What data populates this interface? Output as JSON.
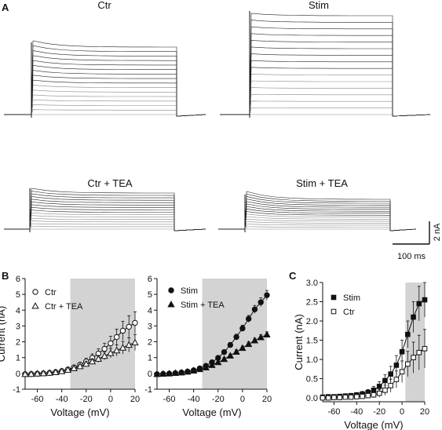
{
  "panel_labels": {
    "A": "A",
    "B": "B",
    "C": "C"
  },
  "trace_titles": {
    "ctr": "Ctr",
    "stim": "Stim",
    "ctr_tea": "Ctr + TEA",
    "stim_tea": "Stim + TEA"
  },
  "scalebar": {
    "current": "2 nA",
    "time": "100 ms"
  },
  "colors": {
    "shade": "#d3d3d3",
    "trace_dark": "#222222",
    "trace_light": "#888888"
  },
  "chart_data": [
    {
      "type": "line",
      "title": "",
      "xlabel": "Voltage (mV)",
      "ylabel": "Current (nA)",
      "xlim": [
        -70,
        20
      ],
      "ylim": [
        -1,
        6
      ],
      "xticks": [
        "-60",
        "-40",
        "-20",
        "0",
        "20"
      ],
      "yticks": [
        "-1",
        "0",
        "1",
        "2",
        "3",
        "4",
        "5",
        "6"
      ],
      "shaded_range": [
        -33,
        20
      ],
      "legend": "top-left",
      "x": [
        -70,
        -65,
        -60,
        -55,
        -50,
        -45,
        -40,
        -35,
        -30,
        -25,
        -20,
        -15,
        -10,
        -5,
        0,
        5,
        10,
        15,
        20
      ],
      "series": [
        {
          "name": "Ctr",
          "marker": "open-circle",
          "values": [
            -0.05,
            -0.04,
            -0.02,
            0.0,
            0.03,
            0.08,
            0.15,
            0.25,
            0.38,
            0.55,
            0.75,
            0.98,
            1.25,
            1.55,
            1.9,
            2.3,
            2.7,
            2.95,
            3.2
          ],
          "errors": [
            0.05,
            0.05,
            0.05,
            0.05,
            0.06,
            0.07,
            0.08,
            0.1,
            0.12,
            0.15,
            0.2,
            0.25,
            0.3,
            0.35,
            0.45,
            0.5,
            0.6,
            0.7,
            0.7
          ]
        },
        {
          "name": "Ctr + TEA",
          "marker": "open-triangle",
          "values": [
            -0.05,
            -0.04,
            -0.02,
            0.0,
            0.03,
            0.07,
            0.13,
            0.22,
            0.32,
            0.45,
            0.6,
            0.75,
            0.92,
            1.1,
            1.28,
            1.45,
            1.62,
            1.8,
            1.95
          ],
          "errors": [
            0.05,
            0.05,
            0.05,
            0.05,
            0.05,
            0.06,
            0.07,
            0.08,
            0.1,
            0.12,
            0.15,
            0.18,
            0.22,
            0.25,
            0.3,
            0.35,
            0.4,
            0.45,
            0.5
          ]
        }
      ]
    },
    {
      "type": "line",
      "title": "",
      "xlabel": "Voltage (mV)",
      "ylabel": "",
      "xlim": [
        -70,
        20
      ],
      "ylim": [
        -1,
        6
      ],
      "xticks": [
        "-60",
        "-40",
        "-20",
        "0",
        "20"
      ],
      "yticks": [
        "-1",
        "0",
        "1",
        "2",
        "3",
        "4",
        "5",
        "6"
      ],
      "shaded_range": [
        -33,
        20
      ],
      "legend": "top-left",
      "x": [
        -70,
        -65,
        -60,
        -55,
        -50,
        -45,
        -40,
        -35,
        -30,
        -25,
        -20,
        -15,
        -10,
        -5,
        0,
        5,
        10,
        15,
        20
      ],
      "series": [
        {
          "name": "Stim",
          "marker": "filled-circle",
          "values": [
            -0.05,
            -0.03,
            -0.01,
            0.02,
            0.06,
            0.12,
            0.2,
            0.32,
            0.48,
            0.7,
            0.98,
            1.35,
            1.8,
            2.3,
            2.85,
            3.45,
            4.05,
            4.5,
            4.95
          ],
          "errors": [
            0.03,
            0.03,
            0.03,
            0.03,
            0.04,
            0.05,
            0.06,
            0.07,
            0.08,
            0.1,
            0.12,
            0.14,
            0.16,
            0.18,
            0.2,
            0.22,
            0.25,
            0.28,
            0.3
          ]
        },
        {
          "name": "Stim + TEA",
          "marker": "filled-triangle",
          "values": [
            -0.05,
            -0.03,
            -0.01,
            0.02,
            0.05,
            0.1,
            0.17,
            0.26,
            0.37,
            0.52,
            0.7,
            0.9,
            1.12,
            1.36,
            1.6,
            1.85,
            2.08,
            2.28,
            2.45
          ],
          "errors": [
            0.03,
            0.03,
            0.03,
            0.03,
            0.04,
            0.04,
            0.05,
            0.06,
            0.07,
            0.08,
            0.09,
            0.1,
            0.11,
            0.12,
            0.13,
            0.14,
            0.15,
            0.17,
            0.18
          ]
        }
      ]
    },
    {
      "type": "line",
      "title": "",
      "xlabel": "Voltage (mV)",
      "ylabel": "Current (nA)",
      "xlim": [
        -70,
        20
      ],
      "ylim": [
        -0.1,
        3.0
      ],
      "xticks": [
        "-60",
        "-40",
        "-20",
        "0",
        "20"
      ],
      "yticks": [
        "0.0",
        "0.5",
        "1.0",
        "1.5",
        "2.0",
        "2.5",
        "3.0"
      ],
      "shaded_range": [
        3,
        20
      ],
      "legend": "top-left",
      "x": [
        -70,
        -65,
        -60,
        -55,
        -50,
        -45,
        -40,
        -35,
        -30,
        -25,
        -20,
        -15,
        -10,
        -5,
        0,
        5,
        10,
        15,
        20
      ],
      "series": [
        {
          "name": "Stim",
          "marker": "filled-square",
          "values": [
            0.02,
            0.03,
            0.03,
            0.04,
            0.05,
            0.06,
            0.08,
            0.1,
            0.14,
            0.2,
            0.3,
            0.45,
            0.62,
            0.85,
            1.2,
            1.65,
            2.1,
            2.45,
            2.55
          ],
          "errors": [
            0.05,
            0.05,
            0.05,
            0.05,
            0.05,
            0.05,
            0.06,
            0.07,
            0.08,
            0.1,
            0.12,
            0.15,
            0.2,
            0.25,
            0.3,
            0.35,
            0.4,
            0.45,
            0.45
          ]
        },
        {
          "name": "Ctr",
          "marker": "open-square",
          "values": [
            0.0,
            0.0,
            0.01,
            0.01,
            0.02,
            0.02,
            0.03,
            0.04,
            0.06,
            0.08,
            0.12,
            0.2,
            0.32,
            0.48,
            0.68,
            0.88,
            1.05,
            1.18,
            1.28
          ],
          "errors": [
            0.04,
            0.04,
            0.04,
            0.04,
            0.04,
            0.05,
            0.05,
            0.06,
            0.07,
            0.08,
            0.1,
            0.13,
            0.17,
            0.22,
            0.28,
            0.33,
            0.4,
            0.45,
            0.5
          ]
        }
      ]
    }
  ]
}
